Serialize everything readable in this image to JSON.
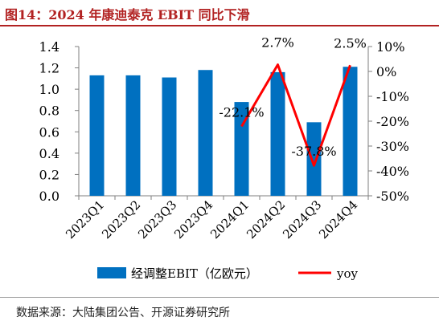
{
  "figure": {
    "title": "图14：2024 年康迪泰克 EBIT 同比下滑",
    "source": "数据来源：大陆集团公告、开源证券研究所"
  },
  "colors": {
    "title": "#b22222",
    "bar": "#0070c0",
    "line": "#ff0000"
  },
  "chart_data": {
    "type": "bar",
    "categories": [
      "2023Q1",
      "2023Q2",
      "2023Q3",
      "2023Q4",
      "2024Q1",
      "2024Q2",
      "2024Q3",
      "2024Q4"
    ],
    "series": [
      {
        "name": "经调整EBIT（亿欧元）",
        "type": "bar",
        "axis": "left",
        "values": [
          1.13,
          1.13,
          1.11,
          1.18,
          0.88,
          1.16,
          0.69,
          1.21
        ]
      },
      {
        "name": "yoy",
        "type": "line",
        "axis": "right",
        "values": [
          null,
          null,
          null,
          null,
          -22.1,
          2.7,
          -37.8,
          2.5
        ]
      }
    ],
    "data_labels": [
      {
        "series": "yoy",
        "index": 4,
        "text": "-22.1%"
      },
      {
        "series": "yoy",
        "index": 5,
        "text": "2.7%"
      },
      {
        "series": "yoy",
        "index": 6,
        "text": "-37.8%"
      },
      {
        "series": "yoy",
        "index": 7,
        "text": "2.5%"
      }
    ],
    "left_axis": {
      "range": [
        0,
        1.4
      ],
      "ticks": [
        0,
        0.2,
        0.4,
        0.6,
        0.8,
        1.0,
        1.2,
        1.4
      ],
      "tick_labels": [
        "0.0",
        "0.2",
        "0.4",
        "0.6",
        "0.8",
        "1.0",
        "1.2",
        "1.4"
      ]
    },
    "right_axis": {
      "range": [
        -50,
        10
      ],
      "ticks": [
        -50,
        -40,
        -30,
        -20,
        -10,
        0,
        10
      ],
      "tick_labels": [
        "-50%",
        "-40%",
        "-30%",
        "-20%",
        "-10%",
        "0%",
        "10%"
      ]
    },
    "grid": false,
    "legend_position": "bottom"
  }
}
